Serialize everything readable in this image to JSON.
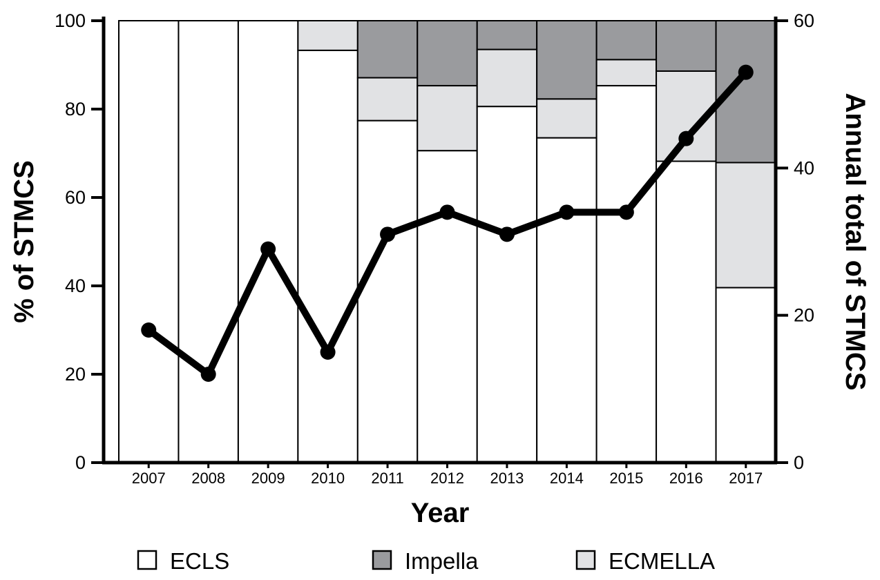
{
  "chart_data": {
    "type": "bar",
    "stacked": true,
    "categories": [
      "2007",
      "2008",
      "2009",
      "2010",
      "2011",
      "2012",
      "2013",
      "2014",
      "2015",
      "2016",
      "2017"
    ],
    "series": [
      {
        "name": "ECLS",
        "axis": "left",
        "color": "#ffffff",
        "values": [
          100,
          100,
          100,
          93.3,
          77.4,
          70.6,
          80.6,
          73.5,
          85.3,
          68.2,
          39.6
        ]
      },
      {
        "name": "ECMELLA",
        "axis": "left",
        "color": "#e1e2e4",
        "values": [
          0,
          0,
          0,
          6.7,
          9.7,
          14.7,
          12.9,
          8.8,
          5.9,
          20.4,
          28.3
        ]
      },
      {
        "name": "Impella",
        "axis": "left",
        "color": "#9a9b9e",
        "values": [
          0,
          0,
          0,
          0,
          12.9,
          14.7,
          6.5,
          17.7,
          8.8,
          11.4,
          32.1
        ]
      }
    ],
    "line": {
      "name": "Annual total of STMCS",
      "axis": "right",
      "values": [
        18,
        12,
        29,
        15,
        31,
        34,
        31,
        34,
        34,
        44,
        53
      ]
    },
    "xlabel": "Year",
    "ylabel": "% of STMCS",
    "y2label": "Annual total of STMCS",
    "ylim": [
      0,
      100
    ],
    "yticks": [
      0,
      20,
      40,
      60,
      80,
      100
    ],
    "y2lim": [
      0,
      60
    ],
    "y2ticks": [
      0,
      20,
      40,
      60
    ],
    "grid": false,
    "legend_position": "bottom",
    "legend": [
      {
        "label": "ECLS",
        "color": "#ffffff"
      },
      {
        "label": "Impella",
        "color": "#9a9b9e"
      },
      {
        "label": "ECMELLA",
        "color": "#e1e2e4"
      }
    ]
  }
}
